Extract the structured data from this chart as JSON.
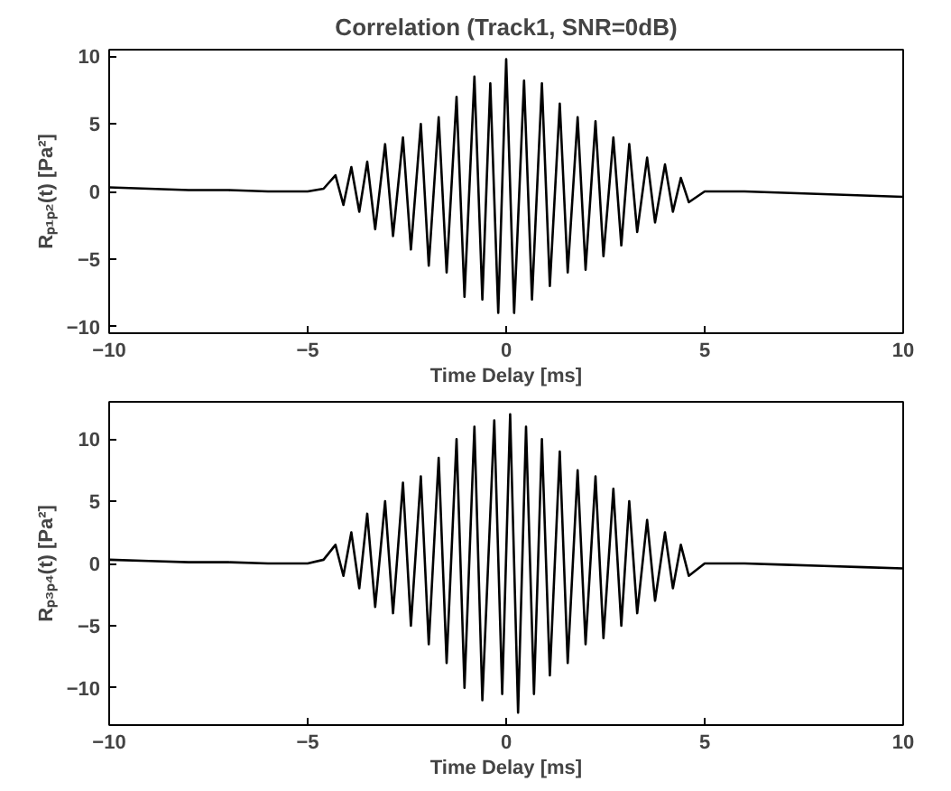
{
  "chart_data": [
    {
      "type": "line",
      "title": "Correlation (Track1, SNR=0dB)",
      "xlabel": "Time Delay [ms]",
      "ylabel": "Rₚ₁ₚ₂(t) [Pa²]",
      "x": [
        -10,
        -9,
        -8,
        -7,
        -6,
        -5,
        -4.6,
        -4.3,
        -4.1,
        -3.9,
        -3.7,
        -3.5,
        -3.3,
        -3.05,
        -2.85,
        -2.6,
        -2.4,
        -2.15,
        -1.95,
        -1.7,
        -1.5,
        -1.25,
        -1.05,
        -0.8,
        -0.6,
        -0.4,
        -0.2,
        0.0,
        0.2,
        0.45,
        0.65,
        0.9,
        1.1,
        1.35,
        1.55,
        1.8,
        2.0,
        2.25,
        2.45,
        2.7,
        2.9,
        3.1,
        3.3,
        3.55,
        3.75,
        4.0,
        4.2,
        4.4,
        4.6,
        5,
        6,
        7,
        8,
        9,
        10
      ],
      "series": [
        {
          "color": "#000000",
          "values": [
            0.3,
            0.2,
            0.1,
            0.1,
            0,
            0,
            0.2,
            1.2,
            -1.0,
            1.8,
            -1.5,
            2.2,
            -2.8,
            3.5,
            -3.3,
            4.0,
            -4.3,
            5.0,
            -5.5,
            5.5,
            -6.0,
            7.0,
            -7.8,
            8.5,
            -8.0,
            8.0,
            -9.0,
            9.8,
            -9.0,
            8.2,
            -8.0,
            8.0,
            -7.0,
            6.5,
            -6.0,
            5.5,
            -5.8,
            5.2,
            -4.8,
            4.0,
            -4.0,
            3.5,
            -3.0,
            2.5,
            -2.3,
            2.0,
            -1.5,
            1.0,
            -0.8,
            0,
            0,
            -0.1,
            -0.2,
            -0.3,
            -0.4
          ]
        }
      ],
      "xlim": [
        -10,
        10
      ],
      "ylim": [
        -10.5,
        10.5
      ],
      "xticks": [
        -10,
        -5,
        0,
        5,
        10
      ],
      "yticks": [
        -10,
        -5,
        0,
        5,
        10
      ],
      "grid": false
    },
    {
      "type": "line",
      "xlabel": "Time Delay [ms]",
      "ylabel": "Rₚ₃ₚ₄(t) [Pa²]",
      "x": [
        -10,
        -9,
        -8,
        -7,
        -6,
        -5,
        -4.6,
        -4.3,
        -4.1,
        -3.9,
        -3.7,
        -3.5,
        -3.3,
        -3.05,
        -2.85,
        -2.6,
        -2.4,
        -2.15,
        -1.95,
        -1.7,
        -1.5,
        -1.25,
        -1.05,
        -0.8,
        -0.6,
        -0.3,
        -0.1,
        0.1,
        0.3,
        0.5,
        0.7,
        0.9,
        1.1,
        1.35,
        1.55,
        1.8,
        2.0,
        2.25,
        2.45,
        2.7,
        2.9,
        3.1,
        3.3,
        3.55,
        3.75,
        4.0,
        4.2,
        4.4,
        4.6,
        5,
        6,
        7,
        8,
        9,
        10
      ],
      "series": [
        {
          "color": "#000000",
          "values": [
            0.3,
            0.2,
            0.1,
            0.1,
            0,
            0,
            0.3,
            1.5,
            -1.0,
            2.5,
            -2.0,
            4.0,
            -3.5,
            5.0,
            -4.0,
            6.5,
            -5.0,
            7.0,
            -6.5,
            8.5,
            -8.0,
            10.0,
            -10.0,
            11.0,
            -11.0,
            11.5,
            -10.5,
            12.0,
            -12.0,
            11.0,
            -10.5,
            10.0,
            -9.0,
            9.0,
            -8.0,
            7.5,
            -6.5,
            7.0,
            -6.0,
            6.0,
            -5.0,
            5.0,
            -4.0,
            3.5,
            -3.0,
            2.5,
            -2.0,
            1.5,
            -1.0,
            0,
            0,
            -0.1,
            -0.2,
            -0.3,
            -0.4
          ]
        }
      ],
      "xlim": [
        -10,
        10
      ],
      "ylim": [
        -13,
        13
      ],
      "xticks": [
        -10,
        -5,
        0,
        5,
        10
      ],
      "yticks": [
        -10,
        -5,
        0,
        5,
        10
      ],
      "grid": false
    }
  ]
}
